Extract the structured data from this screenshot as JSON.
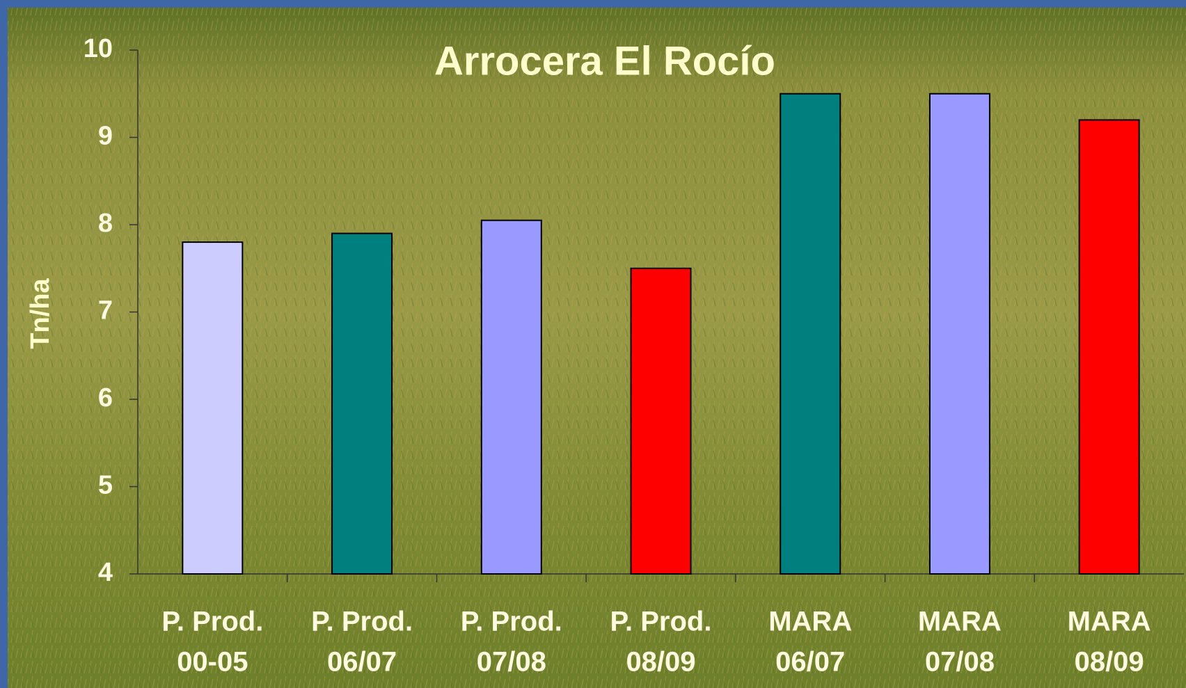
{
  "chart_data": {
    "type": "bar",
    "title": "Arrocera El Rocío",
    "y_label": "Tn/ha",
    "categories": [
      [
        "P. Prod.",
        "00-05"
      ],
      [
        "P. Prod.",
        "06/07"
      ],
      [
        "P. Prod.",
        "07/08"
      ],
      [
        "P. Prod.",
        "08/09"
      ],
      [
        "MARA",
        "06/07"
      ],
      [
        "MARA",
        "07/08"
      ],
      [
        "MARA",
        "08/09"
      ]
    ],
    "values": [
      7.8,
      7.9,
      8.05,
      7.5,
      9.5,
      9.5,
      9.2
    ],
    "colors": [
      "#ccccff",
      "#007f7f",
      "#9999ff",
      "#ff0000",
      "#007f7f",
      "#9999ff",
      "#ff0000"
    ],
    "ylim": [
      4,
      10
    ],
    "yticks": [
      4,
      5,
      6,
      7,
      8,
      9,
      10
    ],
    "grid": false
  }
}
